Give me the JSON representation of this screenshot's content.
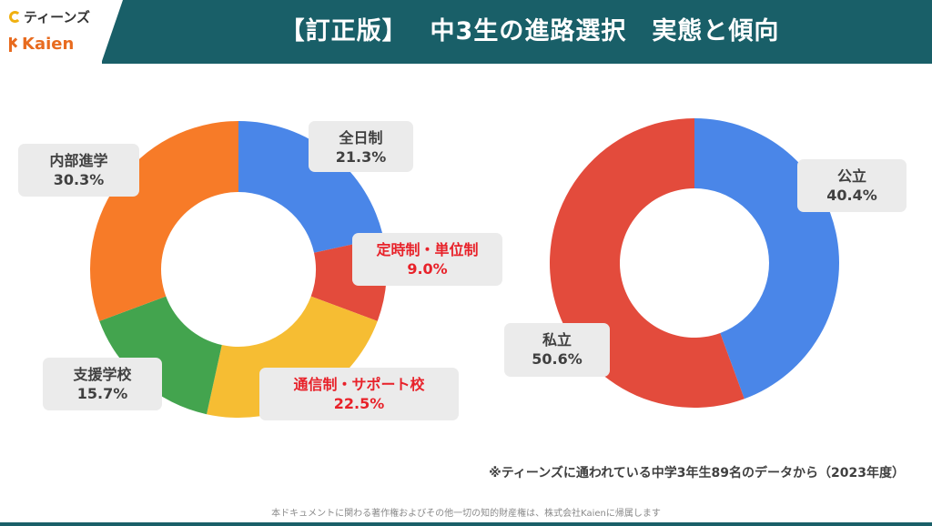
{
  "header": {
    "logo_teens": "ティーンズ",
    "logo_kaien": "Kaien",
    "title": "【訂正版】　 中3生の進路選択　実態と傾向"
  },
  "chart_data": [
    {
      "type": "pie",
      "donut": true,
      "categories": [
        "全日制",
        "定時制・単位制",
        "通信制・サポート校",
        "支援学校",
        "内部進学"
      ],
      "values": [
        21.3,
        9.0,
        22.5,
        15.7,
        30.3
      ],
      "colors": [
        "#4a86e8",
        "#e34b3c",
        "#f6bd33",
        "#43a44e",
        "#f77b28"
      ],
      "value_labels": [
        "21.3%",
        "9.0%",
        "22.5%",
        "15.7%",
        "30.3%"
      ],
      "highlight": [
        false,
        true,
        true,
        false,
        false
      ],
      "highlight_color": "#e8222a"
    },
    {
      "type": "pie",
      "donut": true,
      "categories": [
        "公立",
        "私立"
      ],
      "values": [
        40.4,
        50.6
      ],
      "colors": [
        "#4a86e8",
        "#e34b3c"
      ],
      "value_labels": [
        "40.4%",
        "50.6%"
      ]
    }
  ],
  "note": "※ティーンズに通われている中学3年生89名のデータから（2023年度）",
  "footer": "本ドキュメントに関わる著作権およびその他一切の知的財産権は、株式会社Kaienに帰属します"
}
